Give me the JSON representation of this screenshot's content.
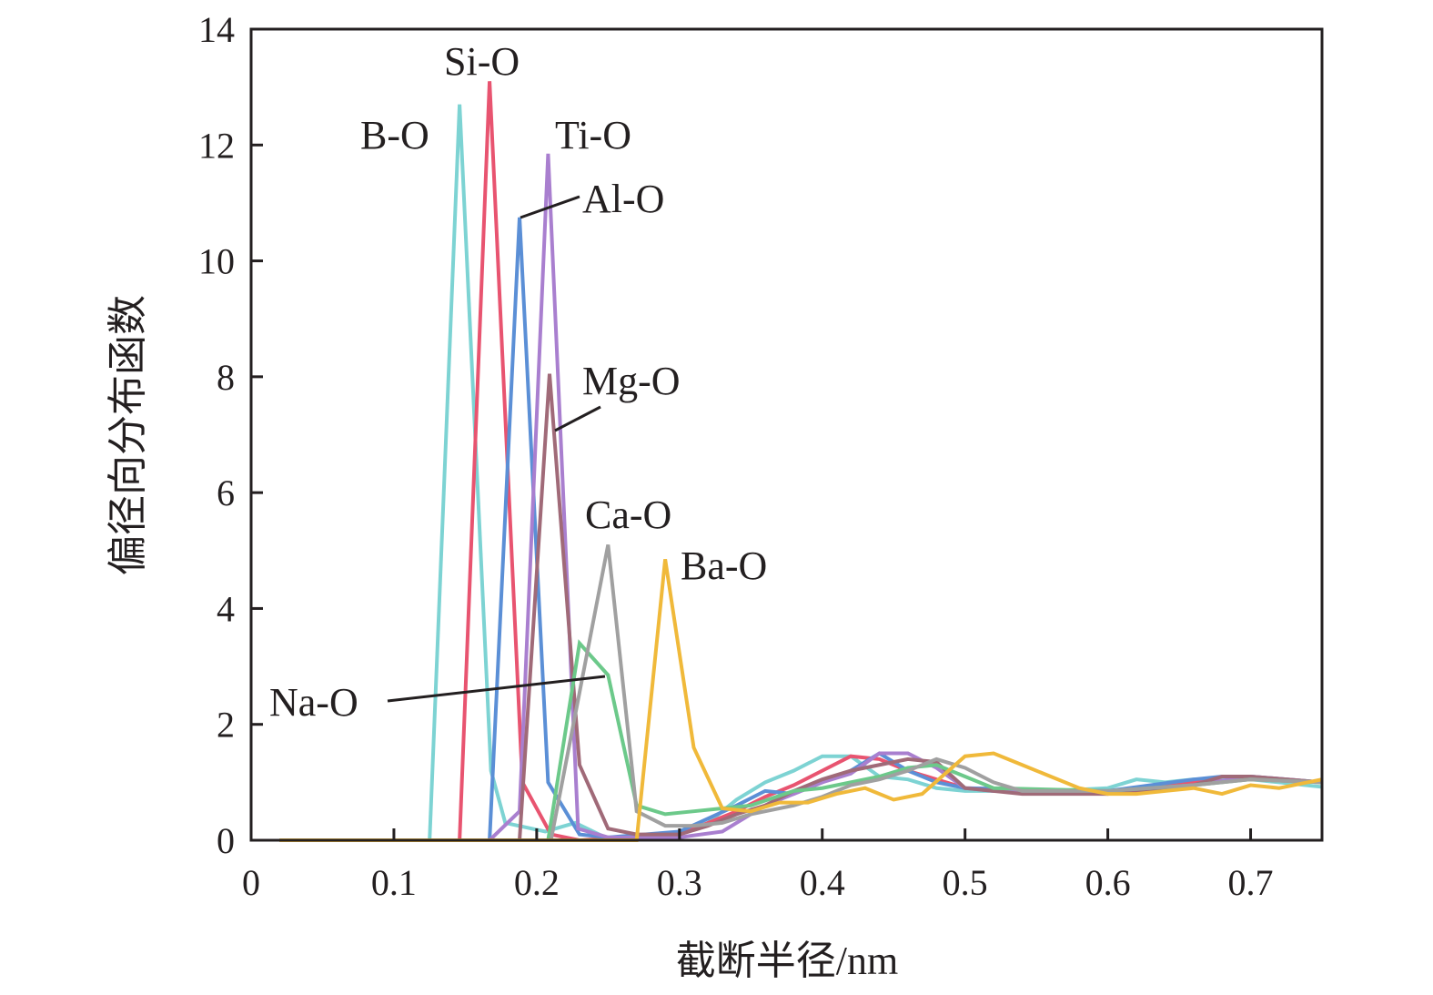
{
  "chart_data": {
    "type": "line",
    "title": "",
    "xlabel": "截断半径/nm",
    "ylabel": "偏径向分布函数",
    "xlim": [
      0,
      0.75
    ],
    "ylim": [
      0,
      14
    ],
    "xticks": [
      "0",
      "0.1",
      "0.2",
      "0.3",
      "0.4",
      "0.5",
      "0.6",
      "0.7"
    ],
    "yticks": [
      "0",
      "2",
      "4",
      "6",
      "8",
      "10",
      "12",
      "14"
    ],
    "grid": false,
    "legend": "none (inline labels)",
    "series": [
      {
        "name": "B-O",
        "color": "#7dd3d3",
        "points": [
          [
            0.02,
            0
          ],
          [
            0.125,
            0
          ],
          [
            0.146,
            12.7
          ],
          [
            0.168,
            1.2
          ],
          [
            0.178,
            0.3
          ],
          [
            0.206,
            0.15
          ],
          [
            0.227,
            0.3
          ],
          [
            0.248,
            0.05
          ],
          [
            0.27,
            0.05
          ],
          [
            0.3,
            0.1
          ],
          [
            0.32,
            0.3
          ],
          [
            0.34,
            0.7
          ],
          [
            0.36,
            1.0
          ],
          [
            0.38,
            1.2
          ],
          [
            0.4,
            1.45
          ],
          [
            0.42,
            1.45
          ],
          [
            0.44,
            1.1
          ],
          [
            0.46,
            1.05
          ],
          [
            0.48,
            0.9
          ],
          [
            0.5,
            0.85
          ],
          [
            0.56,
            0.85
          ],
          [
            0.6,
            0.9
          ],
          [
            0.62,
            1.05
          ],
          [
            0.64,
            1.0
          ],
          [
            0.66,
            1.05
          ],
          [
            0.7,
            1.05
          ],
          [
            0.72,
            1.0
          ],
          [
            0.75,
            0.92
          ]
        ]
      },
      {
        "name": "Si-O",
        "color": "#e85470",
        "points": [
          [
            0.02,
            0
          ],
          [
            0.146,
            0
          ],
          [
            0.167,
            13.1
          ],
          [
            0.19,
            1.0
          ],
          [
            0.21,
            0.1
          ],
          [
            0.23,
            0
          ],
          [
            0.3,
            0.1
          ],
          [
            0.34,
            0.5
          ],
          [
            0.36,
            0.75
          ],
          [
            0.38,
            0.95
          ],
          [
            0.4,
            1.2
          ],
          [
            0.42,
            1.45
          ],
          [
            0.44,
            1.4
          ],
          [
            0.46,
            1.2
          ],
          [
            0.48,
            1.05
          ],
          [
            0.5,
            0.9
          ],
          [
            0.56,
            0.85
          ],
          [
            0.62,
            0.85
          ],
          [
            0.66,
            1.0
          ],
          [
            0.7,
            1.05
          ],
          [
            0.75,
            1.0
          ]
        ]
      },
      {
        "name": "Al-O",
        "color": "#5b8fd6",
        "points": [
          [
            0.02,
            0
          ],
          [
            0.167,
            0
          ],
          [
            0.188,
            10.75
          ],
          [
            0.208,
            1.0
          ],
          [
            0.23,
            0.1
          ],
          [
            0.25,
            0.05
          ],
          [
            0.3,
            0.15
          ],
          [
            0.34,
            0.6
          ],
          [
            0.36,
            0.85
          ],
          [
            0.38,
            0.8
          ],
          [
            0.4,
            1.0
          ],
          [
            0.42,
            1.2
          ],
          [
            0.44,
            1.5
          ],
          [
            0.46,
            1.2
          ],
          [
            0.48,
            1.0
          ],
          [
            0.5,
            0.9
          ],
          [
            0.6,
            0.85
          ],
          [
            0.66,
            1.05
          ],
          [
            0.68,
            1.1
          ],
          [
            0.7,
            1.1
          ],
          [
            0.75,
            1.0
          ]
        ]
      },
      {
        "name": "Ti-O",
        "color": "#a97fcf",
        "points": [
          [
            0.02,
            0
          ],
          [
            0.167,
            0
          ],
          [
            0.188,
            0.5
          ],
          [
            0.208,
            11.85
          ],
          [
            0.229,
            0.2
          ],
          [
            0.25,
            0.05
          ],
          [
            0.3,
            0.05
          ],
          [
            0.33,
            0.15
          ],
          [
            0.36,
            0.6
          ],
          [
            0.38,
            0.8
          ],
          [
            0.4,
            1.0
          ],
          [
            0.42,
            1.15
          ],
          [
            0.44,
            1.5
          ],
          [
            0.46,
            1.5
          ],
          [
            0.48,
            1.25
          ],
          [
            0.5,
            0.9
          ],
          [
            0.52,
            0.85
          ],
          [
            0.6,
            0.8
          ],
          [
            0.66,
            0.95
          ],
          [
            0.7,
            1.1
          ],
          [
            0.75,
            1.0
          ]
        ]
      },
      {
        "name": "Mg-O",
        "color": "#a06a78",
        "points": [
          [
            0.02,
            0
          ],
          [
            0.188,
            0
          ],
          [
            0.209,
            8.05
          ],
          [
            0.23,
            1.3
          ],
          [
            0.25,
            0.2
          ],
          [
            0.27,
            0.1
          ],
          [
            0.3,
            0.1
          ],
          [
            0.32,
            0.25
          ],
          [
            0.34,
            0.45
          ],
          [
            0.36,
            0.6
          ],
          [
            0.38,
            0.85
          ],
          [
            0.4,
            1.05
          ],
          [
            0.42,
            1.2
          ],
          [
            0.44,
            1.3
          ],
          [
            0.46,
            1.4
          ],
          [
            0.48,
            1.35
          ],
          [
            0.5,
            0.9
          ],
          [
            0.52,
            0.85
          ],
          [
            0.54,
            0.8
          ],
          [
            0.6,
            0.8
          ],
          [
            0.66,
            0.95
          ],
          [
            0.68,
            1.1
          ],
          [
            0.7,
            1.1
          ],
          [
            0.75,
            1.0
          ]
        ]
      },
      {
        "name": "Na-O",
        "color": "#6cc98a",
        "points": [
          [
            0.02,
            0
          ],
          [
            0.208,
            0
          ],
          [
            0.23,
            3.4
          ],
          [
            0.25,
            2.85
          ],
          [
            0.27,
            0.6
          ],
          [
            0.29,
            0.45
          ],
          [
            0.31,
            0.5
          ],
          [
            0.33,
            0.55
          ],
          [
            0.35,
            0.6
          ],
          [
            0.38,
            0.85
          ],
          [
            0.4,
            0.9
          ],
          [
            0.42,
            1.0
          ],
          [
            0.44,
            1.1
          ],
          [
            0.46,
            1.25
          ],
          [
            0.48,
            1.3
          ],
          [
            0.5,
            1.1
          ],
          [
            0.52,
            0.9
          ],
          [
            0.6,
            0.85
          ],
          [
            0.66,
            0.95
          ],
          [
            0.7,
            1.05
          ],
          [
            0.75,
            1.0
          ]
        ]
      },
      {
        "name": "Ca-O",
        "color": "#a0a0a0",
        "points": [
          [
            0.02,
            0
          ],
          [
            0.21,
            0
          ],
          [
            0.25,
            5.1
          ],
          [
            0.27,
            0.5
          ],
          [
            0.29,
            0.25
          ],
          [
            0.31,
            0.25
          ],
          [
            0.33,
            0.3
          ],
          [
            0.35,
            0.45
          ],
          [
            0.38,
            0.6
          ],
          [
            0.4,
            0.75
          ],
          [
            0.42,
            0.95
          ],
          [
            0.44,
            1.05
          ],
          [
            0.46,
            1.2
          ],
          [
            0.48,
            1.4
          ],
          [
            0.5,
            1.25
          ],
          [
            0.52,
            1.0
          ],
          [
            0.54,
            0.85
          ],
          [
            0.6,
            0.85
          ],
          [
            0.66,
            0.95
          ],
          [
            0.7,
            1.05
          ],
          [
            0.75,
            1.0
          ]
        ]
      },
      {
        "name": "Ba-O",
        "color": "#f0b93a",
        "points": [
          [
            0.02,
            0
          ],
          [
            0.27,
            0
          ],
          [
            0.29,
            4.85
          ],
          [
            0.31,
            1.6
          ],
          [
            0.33,
            0.55
          ],
          [
            0.35,
            0.5
          ],
          [
            0.37,
            0.65
          ],
          [
            0.39,
            0.65
          ],
          [
            0.41,
            0.8
          ],
          [
            0.43,
            0.9
          ],
          [
            0.45,
            0.7
          ],
          [
            0.47,
            0.8
          ],
          [
            0.5,
            1.45
          ],
          [
            0.52,
            1.5
          ],
          [
            0.54,
            1.3
          ],
          [
            0.56,
            1.1
          ],
          [
            0.58,
            0.9
          ],
          [
            0.6,
            0.8
          ],
          [
            0.62,
            0.8
          ],
          [
            0.64,
            0.85
          ],
          [
            0.66,
            0.9
          ],
          [
            0.68,
            0.8
          ],
          [
            0.7,
            0.95
          ],
          [
            0.72,
            0.9
          ],
          [
            0.75,
            1.05
          ]
        ]
      }
    ]
  }
}
